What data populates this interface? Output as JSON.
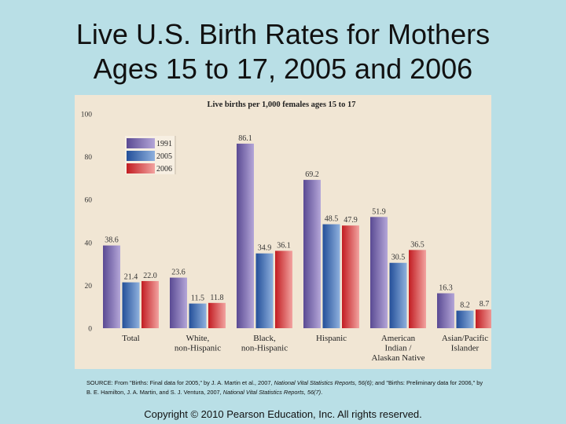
{
  "slide": {
    "title_line1": "Live U.S. Birth Rates for Mothers",
    "title_line2": "Ages 15 to 17, 2005 and 2006",
    "source_prefix": "SOURCE: From \"Births: Final data for 2005,\" by J. A. Martin et al., 2007, ",
    "source_journal1": "National Vital Statistics Reports, 56(6)",
    "source_mid": "; and \"Births: Preliminary data for 2006,\" by B. E. Hamilton, J. A. Martin, and S. J. Ventura, 2007, ",
    "source_journal2": "National Vital Statistics Reports, 56(7)",
    "source_suffix": ".",
    "copyright": "Copyright © 2010 Pearson Education, Inc. All rights reserved."
  },
  "chart_data": {
    "type": "bar",
    "title": "Live births per 1,000 females ages 15 to 17",
    "xlabel": "",
    "ylabel": "",
    "ylim": [
      0,
      100
    ],
    "yticks": [
      0,
      20,
      40,
      60,
      80,
      100
    ],
    "grid": false,
    "legend_position": "top-left",
    "categories": [
      [
        "Total"
      ],
      [
        "White,",
        "non-Hispanic"
      ],
      [
        "Black,",
        "non-Hispanic"
      ],
      [
        "Hispanic"
      ],
      [
        "American",
        "Indian /",
        "Alaskan Native"
      ],
      [
        "Asian/Pacific",
        "Islander"
      ]
    ],
    "series": [
      {
        "name": "1991",
        "values": [
          38.6,
          23.6,
          86.1,
          69.2,
          51.9,
          16.3
        ]
      },
      {
        "name": "2005",
        "values": [
          21.4,
          11.5,
          34.9,
          48.5,
          30.5,
          8.2
        ]
      },
      {
        "name": "2006",
        "values": [
          22.0,
          11.8,
          36.1,
          47.9,
          36.5,
          8.7
        ]
      }
    ],
    "value_labels": [
      [
        "38.6",
        "23.6",
        "86.1",
        "69.2",
        "51.9",
        "16.3"
      ],
      [
        "21.4",
        "11.5",
        "34.9",
        "48.5",
        "30.5",
        "8.2"
      ],
      [
        "22.0",
        "11.8",
        "36.1",
        "47.9",
        "36.5",
        "8.7"
      ]
    ],
    "colors": {
      "1991": [
        "#5a4a93",
        "#b4a6d8"
      ],
      "2005": [
        "#234f99",
        "#8fb1de"
      ],
      "2006": [
        "#c21d22",
        "#f2a3a0"
      ]
    }
  }
}
